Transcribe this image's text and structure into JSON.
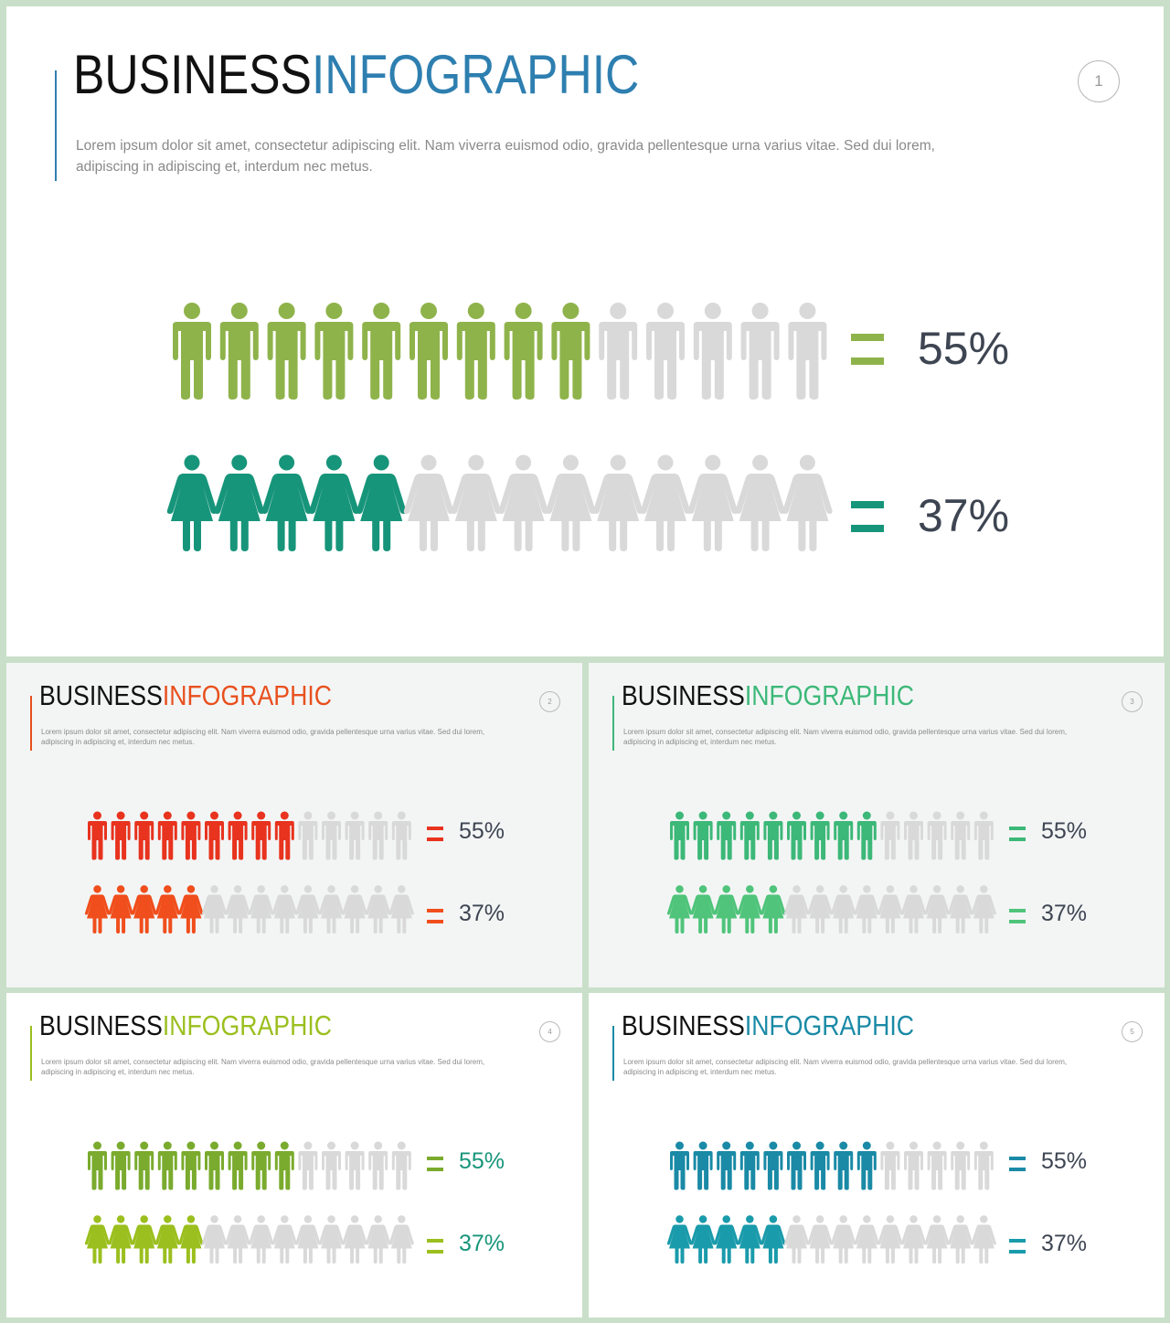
{
  "colors": {
    "inactive": "#d9d9d9",
    "text": "#3e4552"
  },
  "slides": [
    {
      "id": "s1",
      "title_black": "BUSINESS",
      "title_accent": "INFOGRAPHIC",
      "description": "Lorem ipsum dolor sit amet, consectetur adipiscing elit. Nam viverra euismod odio, gravida pellentesque urna varius vitae. Sed dui lorem, adipiscing in adipiscing et, interdum nec metus.",
      "page_number": "1",
      "accent_color": "#2e7fb0",
      "male_color": "#8fb34b",
      "female_color": "#17957a",
      "eq_male_color": "#8fb34b",
      "eq_female_color": "#17957a",
      "pct_color": "#3e4552",
      "male_pct_label": "55%",
      "female_pct_label": "37%"
    },
    {
      "id": "s2",
      "title_black": "BUSINESS",
      "title_accent": "INFOGRAPHIC",
      "description": "Lorem ipsum dolor sit amet, consectetur adipiscing elit. Nam viverra euismod odio, gravida pellentesque urna varius vitae. Sed dui lorem, adipiscing in adipiscing et, interdum nec metus.",
      "page_number": "2",
      "accent_color": "#e8501e",
      "male_color": "#e8331e",
      "female_color": "#f04e1c",
      "eq_male_color": "#e8331e",
      "eq_female_color": "#f04e1c",
      "pct_color": "#3e4552",
      "male_pct_label": "55%",
      "female_pct_label": "37%"
    },
    {
      "id": "s3",
      "title_black": "BUSINESS",
      "title_accent": "INFOGRAPHIC",
      "description": "Lorem ipsum dolor sit amet, consectetur adipiscing elit. Nam viverra euismod odio, gravida pellentesque urna varius vitae. Sed dui lorem, adipiscing in adipiscing et, interdum nec metus.",
      "page_number": "3",
      "accent_color": "#3cb878",
      "male_color": "#3cb878",
      "female_color": "#4fc47a",
      "eq_male_color": "#3cb878",
      "eq_female_color": "#4fc47a",
      "pct_color": "#3e4552",
      "male_pct_label": "55%",
      "female_pct_label": "37%"
    },
    {
      "id": "s4",
      "title_black": "BUSINESS",
      "title_accent": "INFOGRAPHIC",
      "description": "Lorem ipsum dolor sit amet, consectetur adipiscing elit. Nam viverra euismod odio, gravida pellentesque urna varius vitae. Sed dui lorem, adipiscing in adipiscing et, interdum nec metus.",
      "page_number": "4",
      "accent_color": "#9bbf1e",
      "male_color": "#7aab2e",
      "female_color": "#9bbf1e",
      "eq_male_color": "#7aab2e",
      "eq_female_color": "#9bbf1e",
      "pct_color": "#17957a",
      "male_pct_label": "55%",
      "female_pct_label": "37%"
    },
    {
      "id": "s5",
      "title_black": "BUSINESS",
      "title_accent": "INFOGRAPHIC",
      "description": "Lorem ipsum dolor sit amet, consectetur adipiscing elit. Nam viverra euismod odio, gravida pellentesque urna varius vitae. Sed dui lorem, adipiscing in adipiscing et, interdum nec metus.",
      "page_number": "5",
      "accent_color": "#1a8aa6",
      "male_color": "#1a8aa6",
      "female_color": "#1a9bab",
      "eq_male_color": "#1a8aa6",
      "eq_female_color": "#1a9bab",
      "pct_color": "#3e4552",
      "male_pct_label": "55%",
      "female_pct_label": "37%"
    }
  ],
  "chart_data": {
    "type": "pictograph",
    "categories": [
      "male",
      "female"
    ],
    "icons_total": 14,
    "icons_filled": [
      9,
      5
    ],
    "values": [
      55,
      37
    ],
    "value_labels": [
      "55%",
      "37%"
    ],
    "unit": "%"
  }
}
